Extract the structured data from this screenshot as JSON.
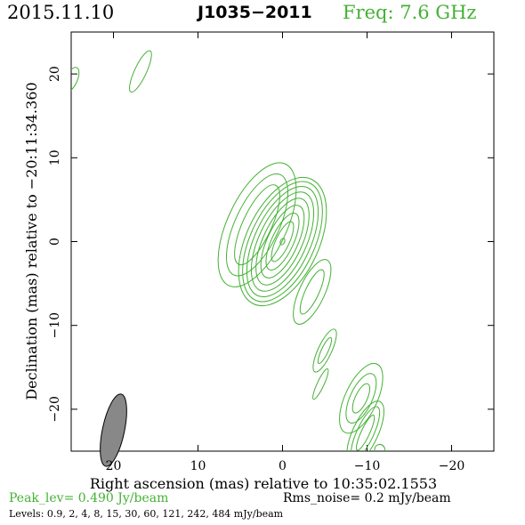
{
  "header": {
    "date": "2015.11.10",
    "source": "J1035−2011",
    "frequency": "Freq: 7.6 GHz"
  },
  "colors": {
    "contour": "#44b134",
    "beam": "#888888",
    "text": "#000000"
  },
  "chart_data": {
    "type": "contour",
    "xlabel": "Right ascension (mas) relative to 10:35:02.1553",
    "ylabel": "Declination (mas) relative to −20:11:34.360",
    "xlim": [
      25,
      -25
    ],
    "ylim": [
      -25,
      25
    ],
    "x_ticks": [
      {
        "value": 20,
        "label": "20"
      },
      {
        "value": 10,
        "label": "10"
      },
      {
        "value": 0,
        "label": "0"
      },
      {
        "value": -10,
        "label": "−10"
      },
      {
        "value": -20,
        "label": "−20"
      }
    ],
    "y_ticks": [
      {
        "value": 20,
        "label": "20"
      },
      {
        "value": 10,
        "label": "10"
      },
      {
        "value": 0,
        "label": "0"
      },
      {
        "value": -10,
        "label": "−10"
      },
      {
        "value": -20,
        "label": "−20"
      }
    ],
    "peak_level": "Peak_lev=  0.490 Jy/beam",
    "rms_noise": "Rms_noise=  0.2 mJy/beam",
    "levels_text": "Levels: 0.9,   2,   4,   8,   15,   30,   60,  121,  242,  484 mJy/beam",
    "levels_mjy": [
      0.9,
      2,
      4,
      8,
      15,
      30,
      60,
      121,
      242,
      484
    ],
    "beam": {
      "x": 20,
      "y": -22.5,
      "major_mas": 4.4,
      "minor_mas": 1.3
    },
    "components": [
      {
        "x": 0,
        "y": 0,
        "rx": [
          0.25,
          0.8,
          1.3,
          1.8,
          2.3,
          2.8,
          3.3,
          3.8,
          4.3
        ],
        "ry": [
          0.4,
          2.6,
          3.7,
          4.7,
          5.6,
          6.4,
          7.1,
          7.7,
          8.2
        ]
      },
      {
        "x": 3,
        "y": 2,
        "rx": [
          1.7,
          2.6,
          3.5
        ],
        "ry": [
          5.2,
          6.6,
          8.0
        ]
      },
      {
        "x": -3.5,
        "y": -6,
        "rx": [
          0.8,
          1.5
        ],
        "ry": [
          2.9,
          4.2
        ]
      },
      {
        "x": -5,
        "y": -13,
        "rx": [
          0.4,
          0.8
        ],
        "ry": [
          1.7,
          2.8
        ]
      },
      {
        "x": -4.5,
        "y": -17,
        "rx": [
          0.4
        ],
        "ry": [
          2.0
        ]
      },
      {
        "x": -9.3,
        "y": -18.7,
        "rx": [
          0.7,
          1.3,
          1.9
        ],
        "ry": [
          1.9,
          3.2,
          4.5
        ]
      },
      {
        "x": -9.8,
        "y": -22.8,
        "rx": [
          0.5,
          1.0,
          1.5
        ],
        "ry": [
          2.3,
          3.4,
          4.1
        ]
      },
      {
        "x": -11.5,
        "y": -24.8,
        "rx": [
          0.6
        ],
        "ry": [
          0.6
        ]
      },
      {
        "x": 16.8,
        "y": 20.3,
        "rx": [
          0.7
        ],
        "ry": [
          2.7
        ]
      },
      {
        "x": 25,
        "y": 19.3,
        "rx": [
          0.7
        ],
        "ry": [
          1.6
        ]
      }
    ]
  }
}
